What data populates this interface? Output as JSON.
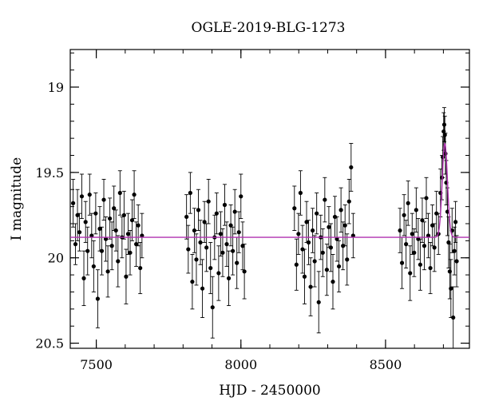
{
  "chart_data": {
    "type": "scatter",
    "title": "OGLE-2019-BLG-1273",
    "xlabel": "HJD - 2450000",
    "ylabel": "I magnitude",
    "xlim": [
      7410,
      8790
    ],
    "ylim": [
      20.53,
      18.78
    ],
    "y_inverted": true,
    "x_ticks": [
      7500,
      8000,
      8500
    ],
    "y_ticks": [
      19,
      19.5,
      20,
      20.5
    ],
    "grid": false,
    "colors": {
      "points": "#000000",
      "model": "#b030b0"
    },
    "baseline_magnitude": 19.88,
    "model_peak": {
      "x": 8705,
      "y": 19.33,
      "width_days": 9
    },
    "points": [
      {
        "x": 7420,
        "y": 19.68,
        "e": 0.14
      },
      {
        "x": 7428,
        "y": 19.92,
        "e": 0.12
      },
      {
        "x": 7435,
        "y": 19.75,
        "e": 0.15
      },
      {
        "x": 7442,
        "y": 19.85,
        "e": 0.11
      },
      {
        "x": 7450,
        "y": 19.64,
        "e": 0.13
      },
      {
        "x": 7457,
        "y": 20.12,
        "e": 0.16
      },
      {
        "x": 7463,
        "y": 19.79,
        "e": 0.12
      },
      {
        "x": 7470,
        "y": 19.96,
        "e": 0.14
      },
      {
        "x": 7477,
        "y": 19.63,
        "e": 0.12
      },
      {
        "x": 7484,
        "y": 19.87,
        "e": 0.13
      },
      {
        "x": 7491,
        "y": 20.05,
        "e": 0.15
      },
      {
        "x": 7498,
        "y": 19.74,
        "e": 0.12
      },
      {
        "x": 7505,
        "y": 20.24,
        "e": 0.17
      },
      {
        "x": 7512,
        "y": 19.83,
        "e": 0.13
      },
      {
        "x": 7519,
        "y": 19.96,
        "e": 0.14
      },
      {
        "x": 7526,
        "y": 19.66,
        "e": 0.12
      },
      {
        "x": 7533,
        "y": 19.89,
        "e": 0.13
      },
      {
        "x": 7540,
        "y": 20.08,
        "e": 0.15
      },
      {
        "x": 7547,
        "y": 19.77,
        "e": 0.12
      },
      {
        "x": 7554,
        "y": 19.93,
        "e": 0.14
      },
      {
        "x": 7561,
        "y": 19.71,
        "e": 0.13
      },
      {
        "x": 7568,
        "y": 19.84,
        "e": 0.12
      },
      {
        "x": 7575,
        "y": 20.02,
        "e": 0.15
      },
      {
        "x": 7582,
        "y": 19.62,
        "e": 0.13
      },
      {
        "x": 7589,
        "y": 19.88,
        "e": 0.12
      },
      {
        "x": 7596,
        "y": 19.75,
        "e": 0.14
      },
      {
        "x": 7603,
        "y": 20.11,
        "e": 0.16
      },
      {
        "x": 7610,
        "y": 19.86,
        "e": 0.12
      },
      {
        "x": 7617,
        "y": 19.97,
        "e": 0.13
      },
      {
        "x": 7624,
        "y": 19.78,
        "e": 0.12
      },
      {
        "x": 7631,
        "y": 19.63,
        "e": 0.14
      },
      {
        "x": 7638,
        "y": 19.92,
        "e": 0.13
      },
      {
        "x": 7645,
        "y": 19.81,
        "e": 0.12
      },
      {
        "x": 7652,
        "y": 20.06,
        "e": 0.15
      },
      {
        "x": 7658,
        "y": 19.87,
        "e": 0.13
      },
      {
        "x": 7812,
        "y": 19.76,
        "e": 0.13
      },
      {
        "x": 7818,
        "y": 19.95,
        "e": 0.14
      },
      {
        "x": 7825,
        "y": 19.62,
        "e": 0.12
      },
      {
        "x": 7832,
        "y": 20.14,
        "e": 0.16
      },
      {
        "x": 7839,
        "y": 19.84,
        "e": 0.13
      },
      {
        "x": 7846,
        "y": 20.01,
        "e": 0.15
      },
      {
        "x": 7853,
        "y": 19.72,
        "e": 0.12
      },
      {
        "x": 7860,
        "y": 19.91,
        "e": 0.13
      },
      {
        "x": 7867,
        "y": 20.18,
        "e": 0.17
      },
      {
        "x": 7874,
        "y": 19.79,
        "e": 0.12
      },
      {
        "x": 7881,
        "y": 19.94,
        "e": 0.14
      },
      {
        "x": 7888,
        "y": 19.67,
        "e": 0.13
      },
      {
        "x": 7895,
        "y": 20.06,
        "e": 0.15
      },
      {
        "x": 7902,
        "y": 20.29,
        "e": 0.18
      },
      {
        "x": 7909,
        "y": 19.88,
        "e": 0.13
      },
      {
        "x": 7916,
        "y": 19.74,
        "e": 0.12
      },
      {
        "x": 7923,
        "y": 20.09,
        "e": 0.16
      },
      {
        "x": 7930,
        "y": 19.86,
        "e": 0.13
      },
      {
        "x": 7937,
        "y": 19.97,
        "e": 0.14
      },
      {
        "x": 7944,
        "y": 19.69,
        "e": 0.12
      },
      {
        "x": 7951,
        "y": 19.92,
        "e": 0.13
      },
      {
        "x": 7958,
        "y": 20.12,
        "e": 0.16
      },
      {
        "x": 7965,
        "y": 19.81,
        "e": 0.12
      },
      {
        "x": 7972,
        "y": 19.96,
        "e": 0.14
      },
      {
        "x": 7979,
        "y": 19.73,
        "e": 0.13
      },
      {
        "x": 7986,
        "y": 20.03,
        "e": 0.15
      },
      {
        "x": 7993,
        "y": 19.85,
        "e": 0.12
      },
      {
        "x": 8000,
        "y": 19.64,
        "e": 0.13
      },
      {
        "x": 8006,
        "y": 19.93,
        "e": 0.14
      },
      {
        "x": 8012,
        "y": 20.08,
        "e": 0.16
      },
      {
        "x": 8185,
        "y": 19.71,
        "e": 0.13
      },
      {
        "x": 8192,
        "y": 20.04,
        "e": 0.15
      },
      {
        "x": 8199,
        "y": 19.86,
        "e": 0.12
      },
      {
        "x": 8206,
        "y": 19.62,
        "e": 0.13
      },
      {
        "x": 8213,
        "y": 19.95,
        "e": 0.14
      },
      {
        "x": 8220,
        "y": 20.11,
        "e": 0.16
      },
      {
        "x": 8227,
        "y": 19.79,
        "e": 0.12
      },
      {
        "x": 8234,
        "y": 19.91,
        "e": 0.13
      },
      {
        "x": 8241,
        "y": 20.17,
        "e": 0.17
      },
      {
        "x": 8248,
        "y": 19.84,
        "e": 0.13
      },
      {
        "x": 8255,
        "y": 20.02,
        "e": 0.15
      },
      {
        "x": 8262,
        "y": 19.74,
        "e": 0.12
      },
      {
        "x": 8269,
        "y": 20.26,
        "e": 0.18
      },
      {
        "x": 8276,
        "y": 19.88,
        "e": 0.13
      },
      {
        "x": 8283,
        "y": 19.97,
        "e": 0.14
      },
      {
        "x": 8290,
        "y": 19.66,
        "e": 0.13
      },
      {
        "x": 8297,
        "y": 20.07,
        "e": 0.15
      },
      {
        "x": 8304,
        "y": 19.82,
        "e": 0.12
      },
      {
        "x": 8311,
        "y": 19.94,
        "e": 0.14
      },
      {
        "x": 8318,
        "y": 20.14,
        "e": 0.16
      },
      {
        "x": 8325,
        "y": 19.76,
        "e": 0.12
      },
      {
        "x": 8332,
        "y": 19.89,
        "e": 0.13
      },
      {
        "x": 8339,
        "y": 20.05,
        "e": 0.15
      },
      {
        "x": 8346,
        "y": 19.72,
        "e": 0.13
      },
      {
        "x": 8353,
        "y": 19.93,
        "e": 0.14
      },
      {
        "x": 8360,
        "y": 19.81,
        "e": 0.12
      },
      {
        "x": 8367,
        "y": 20.01,
        "e": 0.15
      },
      {
        "x": 8374,
        "y": 19.67,
        "e": 0.13
      },
      {
        "x": 8381,
        "y": 19.47,
        "e": 0.14
      },
      {
        "x": 8388,
        "y": 19.87,
        "e": 0.13
      },
      {
        "x": 8550,
        "y": 19.84,
        "e": 0.13
      },
      {
        "x": 8557,
        "y": 20.03,
        "e": 0.15
      },
      {
        "x": 8564,
        "y": 19.75,
        "e": 0.12
      },
      {
        "x": 8571,
        "y": 19.92,
        "e": 0.14
      },
      {
        "x": 8578,
        "y": 19.68,
        "e": 0.13
      },
      {
        "x": 8585,
        "y": 20.09,
        "e": 0.16
      },
      {
        "x": 8592,
        "y": 19.86,
        "e": 0.12
      },
      {
        "x": 8599,
        "y": 19.97,
        "e": 0.14
      },
      {
        "x": 8606,
        "y": 19.72,
        "e": 0.13
      },
      {
        "x": 8613,
        "y": 19.89,
        "e": 0.12
      },
      {
        "x": 8620,
        "y": 20.04,
        "e": 0.15
      },
      {
        "x": 8627,
        "y": 19.78,
        "e": 0.13
      },
      {
        "x": 8634,
        "y": 19.93,
        "e": 0.14
      },
      {
        "x": 8641,
        "y": 19.65,
        "e": 0.12
      },
      {
        "x": 8648,
        "y": 19.87,
        "e": 0.13
      },
      {
        "x": 8655,
        "y": 20.06,
        "e": 0.15
      },
      {
        "x": 8662,
        "y": 19.81,
        "e": 0.12
      },
      {
        "x": 8669,
        "y": 19.94,
        "e": 0.14
      },
      {
        "x": 8676,
        "y": 19.74,
        "e": 0.13
      },
      {
        "x": 8683,
        "y": 19.86,
        "e": 0.12
      },
      {
        "x": 8690,
        "y": 19.62,
        "e": 0.14
      },
      {
        "x": 8695,
        "y": 19.53,
        "e": 0.13
      },
      {
        "x": 8698,
        "y": 19.41,
        "e": 0.12
      },
      {
        "x": 8701,
        "y": 19.26,
        "e": 0.11
      },
      {
        "x": 8703,
        "y": 19.22,
        "e": 0.1
      },
      {
        "x": 8705,
        "y": 19.28,
        "e": 0.11
      },
      {
        "x": 8707,
        "y": 19.39,
        "e": 0.12
      },
      {
        "x": 8710,
        "y": 19.56,
        "e": 0.13
      },
      {
        "x": 8714,
        "y": 19.73,
        "e": 0.14
      },
      {
        "x": 8718,
        "y": 19.91,
        "e": 0.15
      },
      {
        "x": 8722,
        "y": 20.08,
        "e": 0.16
      },
      {
        "x": 8726,
        "y": 20.18,
        "e": 0.17
      },
      {
        "x": 8730,
        "y": 19.84,
        "e": 0.13
      },
      {
        "x": 8734,
        "y": 20.35,
        "e": 0.18
      },
      {
        "x": 8738,
        "y": 19.96,
        "e": 0.14
      },
      {
        "x": 8742,
        "y": 19.79,
        "e": 0.12
      },
      {
        "x": 8746,
        "y": 20.02,
        "e": 0.15
      }
    ]
  }
}
